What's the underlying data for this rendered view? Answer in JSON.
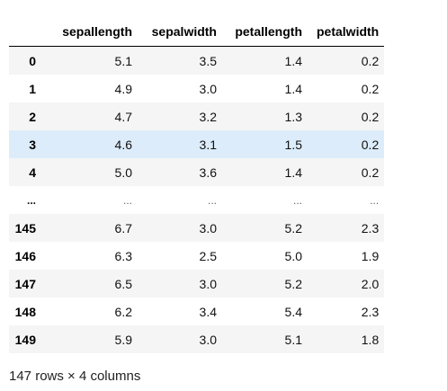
{
  "dataframe": {
    "columns": [
      "sepallength",
      "sepalwidth",
      "petallength",
      "petalwidth"
    ],
    "rows": [
      {
        "index": "0",
        "values": [
          "5.1",
          "3.5",
          "1.4",
          "0.2"
        ]
      },
      {
        "index": "1",
        "values": [
          "4.9",
          "3.0",
          "1.4",
          "0.2"
        ]
      },
      {
        "index": "2",
        "values": [
          "4.7",
          "3.2",
          "1.3",
          "0.2"
        ]
      },
      {
        "index": "3",
        "values": [
          "4.6",
          "3.1",
          "1.5",
          "0.2"
        ]
      },
      {
        "index": "4",
        "values": [
          "5.0",
          "3.6",
          "1.4",
          "0.2"
        ]
      },
      {
        "index": "...",
        "values": [
          "...",
          "...",
          "...",
          "..."
        ]
      },
      {
        "index": "145",
        "values": [
          "6.7",
          "3.0",
          "5.2",
          "2.3"
        ]
      },
      {
        "index": "146",
        "values": [
          "6.3",
          "2.5",
          "5.0",
          "1.9"
        ]
      },
      {
        "index": "147",
        "values": [
          "6.5",
          "3.0",
          "5.2",
          "2.0"
        ]
      },
      {
        "index": "148",
        "values": [
          "6.2",
          "3.4",
          "5.4",
          "2.3"
        ]
      },
      {
        "index": "149",
        "values": [
          "5.9",
          "3.0",
          "5.1",
          "1.8"
        ]
      }
    ],
    "hovered_row_index": "3",
    "shape_text": "147 rows × 4 columns"
  },
  "colors": {
    "hover_row": "#dcecfa",
    "stripe_row": "#f5f5f5"
  }
}
